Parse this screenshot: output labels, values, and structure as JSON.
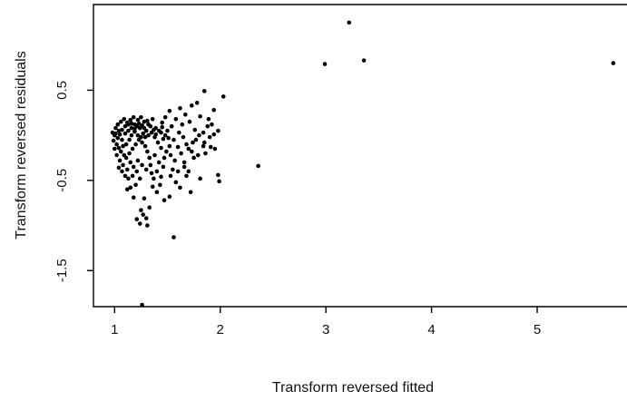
{
  "chart_data": {
    "type": "scatter",
    "title": "",
    "xlabel": "Transform reversed fitted",
    "ylabel": "Transform reversed residuals",
    "xlim": [
      0.8,
      5.85
    ],
    "ylim": [
      -1.9,
      1.45
    ],
    "xticks": [
      1,
      2,
      3,
      4,
      5
    ],
    "yticks": [
      -1.5,
      -0.5,
      0.5
    ],
    "xtick_labels": [
      "1",
      "2",
      "3",
      "4",
      "5"
    ],
    "ytick_labels": [
      "-1.5",
      "-0.5",
      "0.5"
    ],
    "grid": false,
    "legend": "none",
    "point_color": "#000000",
    "points": [
      [
        3.22,
        1.25
      ],
      [
        3.36,
        0.83
      ],
      [
        2.99,
        0.79
      ],
      [
        5.72,
        0.8
      ],
      [
        2.36,
        -0.34
      ],
      [
        1.26,
        -1.88
      ],
      [
        1.56,
        -1.13
      ],
      [
        1.85,
        0.49
      ],
      [
        2.03,
        0.43
      ],
      [
        1.78,
        0.36
      ],
      [
        1.73,
        0.33
      ],
      [
        1.62,
        0.3
      ],
      [
        1.94,
        0.28
      ],
      [
        1.81,
        0.21
      ],
      [
        1.67,
        0.23
      ],
      [
        1.92,
        0.12
      ],
      [
        1.52,
        0.27
      ],
      [
        1.48,
        0.2
      ],
      [
        1.45,
        0.14
      ],
      [
        1.98,
        0.05
      ],
      [
        1.88,
        0.1
      ],
      [
        1.71,
        0.15
      ],
      [
        1.98,
        -0.44
      ],
      [
        1.99,
        -0.51
      ],
      [
        1.81,
        -0.48
      ],
      [
        1.72,
        -0.63
      ],
      [
        1.91,
        -0.13
      ],
      [
        1.84,
        -0.12
      ],
      [
        1.7,
        -0.15
      ],
      [
        1.6,
        -0.13
      ],
      [
        1.75,
        -0.25
      ],
      [
        1.66,
        -0.35
      ],
      [
        1.55,
        -0.38
      ],
      [
        1.58,
        -0.52
      ],
      [
        1.52,
        -0.68
      ],
      [
        1.47,
        -0.72
      ],
      [
        1.4,
        -0.63
      ],
      [
        1.43,
        -0.55
      ],
      [
        1.36,
        -0.57
      ],
      [
        1.33,
        -0.8
      ],
      [
        1.3,
        -0.92
      ],
      [
        1.31,
        -1.0
      ],
      [
        1.27,
        -0.88
      ],
      [
        1.25,
        -0.83
      ],
      [
        1.24,
        -0.98
      ],
      [
        1.21,
        -0.93
      ],
      [
        1.18,
        -0.69
      ],
      [
        1.15,
        -0.58
      ],
      [
        1.2,
        -0.55
      ],
      [
        1.24,
        -0.48
      ],
      [
        1.12,
        -0.6
      ],
      [
        1.1,
        -0.45
      ],
      [
        1.28,
        -0.7
      ],
      [
        1.35,
        -0.42
      ],
      [
        1.42,
        -0.3
      ],
      [
        1.38,
        -0.22
      ],
      [
        1.47,
        -0.25
      ],
      [
        1.52,
        -0.12
      ],
      [
        1.56,
        -0.05
      ],
      [
        1.61,
        0.03
      ],
      [
        1.65,
        -0.02
      ],
      [
        1.77,
        -0.05
      ],
      [
        1.84,
        0.03
      ],
      [
        1.5,
        0.05
      ],
      [
        1.44,
        0.03
      ],
      [
        1.39,
        0.08
      ],
      [
        1.36,
        0.18
      ],
      [
        1.32,
        0.12
      ],
      [
        1.3,
        0.05
      ],
      [
        1.28,
        0.15
      ],
      [
        1.25,
        0.2
      ],
      [
        1.22,
        0.17
      ],
      [
        1.19,
        0.12
      ],
      [
        1.16,
        0.08
      ],
      [
        1.13,
        0.05
      ],
      [
        1.1,
        0.02
      ],
      [
        1.07,
        0.06
      ],
      [
        1.05,
        0.01
      ],
      [
        1.03,
        -0.03
      ],
      [
        1.0,
        0.0
      ],
      [
        0.98,
        0.03
      ],
      [
        0.99,
        -0.06
      ],
      [
        1.02,
        -0.1
      ],
      [
        1.04,
        -0.14
      ],
      [
        1.06,
        -0.18
      ],
      [
        1.08,
        -0.12
      ],
      [
        1.09,
        -0.22
      ],
      [
        1.11,
        -0.25
      ],
      [
        1.14,
        -0.2
      ],
      [
        1.17,
        -0.15
      ],
      [
        1.2,
        -0.1
      ],
      [
        1.23,
        -0.05
      ],
      [
        1.26,
        -0.08
      ],
      [
        1.29,
        -0.12
      ],
      [
        1.31,
        -0.18
      ],
      [
        1.33,
        -0.25
      ],
      [
        1.34,
        -0.33
      ],
      [
        1.3,
        -0.38
      ],
      [
        1.26,
        -0.33
      ],
      [
        1.22,
        -0.28
      ],
      [
        1.18,
        -0.35
      ],
      [
        1.15,
        -0.3
      ],
      [
        1.12,
        -0.38
      ],
      [
        1.08,
        -0.33
      ],
      [
        1.05,
        -0.28
      ],
      [
        1.02,
        -0.22
      ],
      [
        1.0,
        -0.15
      ],
      [
        1.01,
        0.08
      ],
      [
        1.03,
        0.12
      ],
      [
        1.06,
        0.15
      ],
      [
        1.09,
        0.18
      ],
      [
        1.12,
        0.14
      ],
      [
        1.15,
        0.17
      ],
      [
        1.18,
        0.2
      ],
      [
        1.21,
        0.1
      ],
      [
        1.24,
        0.08
      ],
      [
        1.27,
        0.02
      ],
      [
        1.29,
        -0.02
      ],
      [
        1.32,
        0.0
      ],
      [
        1.35,
        0.03
      ],
      [
        1.38,
        -0.02
      ],
      [
        1.41,
        -0.08
      ],
      [
        1.44,
        -0.14
      ],
      [
        1.46,
        -0.04
      ],
      [
        1.49,
        -0.18
      ],
      [
        1.53,
        -0.22
      ],
      [
        1.57,
        -0.28
      ],
      [
        1.63,
        -0.2
      ],
      [
        1.68,
        -0.1
      ],
      [
        1.73,
        -0.18
      ],
      [
        1.79,
        -0.22
      ],
      [
        1.86,
        -0.2
      ],
      [
        1.95,
        -0.15
      ],
      [
        1.89,
        0.18
      ],
      [
        1.76,
        0.06
      ],
      [
        1.64,
        0.12
      ],
      [
        1.58,
        0.18
      ],
      [
        1.54,
        0.1
      ],
      [
        1.4,
        -0.4
      ],
      [
        1.37,
        -0.48
      ],
      [
        1.44,
        -0.46
      ],
      [
        1.62,
        -0.58
      ],
      [
        1.68,
        -0.45
      ],
      [
        1.17,
        -0.45
      ],
      [
        1.21,
        -0.4
      ],
      [
        1.13,
        -0.48
      ],
      [
        1.07,
        -0.4
      ],
      [
        1.04,
        -0.36
      ],
      [
        1.11,
        -0.1
      ],
      [
        1.14,
        -0.05
      ],
      [
        1.16,
        0.0
      ],
      [
        1.19,
        0.04
      ],
      [
        1.22,
        0.0
      ],
      [
        1.25,
        -0.02
      ],
      [
        1.07,
        -0.05
      ],
      [
        1.04,
        0.05
      ],
      [
        1.01,
        0.02
      ],
      [
        1.1,
        0.1
      ],
      [
        1.13,
        0.12
      ],
      [
        1.16,
        0.13
      ],
      [
        1.19,
        0.07
      ],
      [
        1.23,
        0.13
      ],
      [
        1.26,
        0.11
      ],
      [
        1.28,
        0.08
      ],
      [
        1.31,
        0.16
      ],
      [
        1.34,
        0.1
      ],
      [
        1.37,
        0.06
      ],
      [
        1.39,
        0.01
      ],
      [
        1.42,
        0.05
      ],
      [
        1.45,
        0.09
      ],
      [
        1.48,
        0.0
      ],
      [
        1.51,
        -0.03
      ],
      [
        1.46,
        -0.35
      ],
      [
        1.53,
        -0.45
      ],
      [
        1.6,
        -0.4
      ],
      [
        1.66,
        -0.3
      ],
      [
        1.7,
        -0.4
      ],
      [
        1.74,
        -0.08
      ],
      [
        1.8,
        0.0
      ],
      [
        1.85,
        -0.08
      ],
      [
        1.9,
        -0.02
      ],
      [
        1.94,
        0.01
      ]
    ]
  }
}
